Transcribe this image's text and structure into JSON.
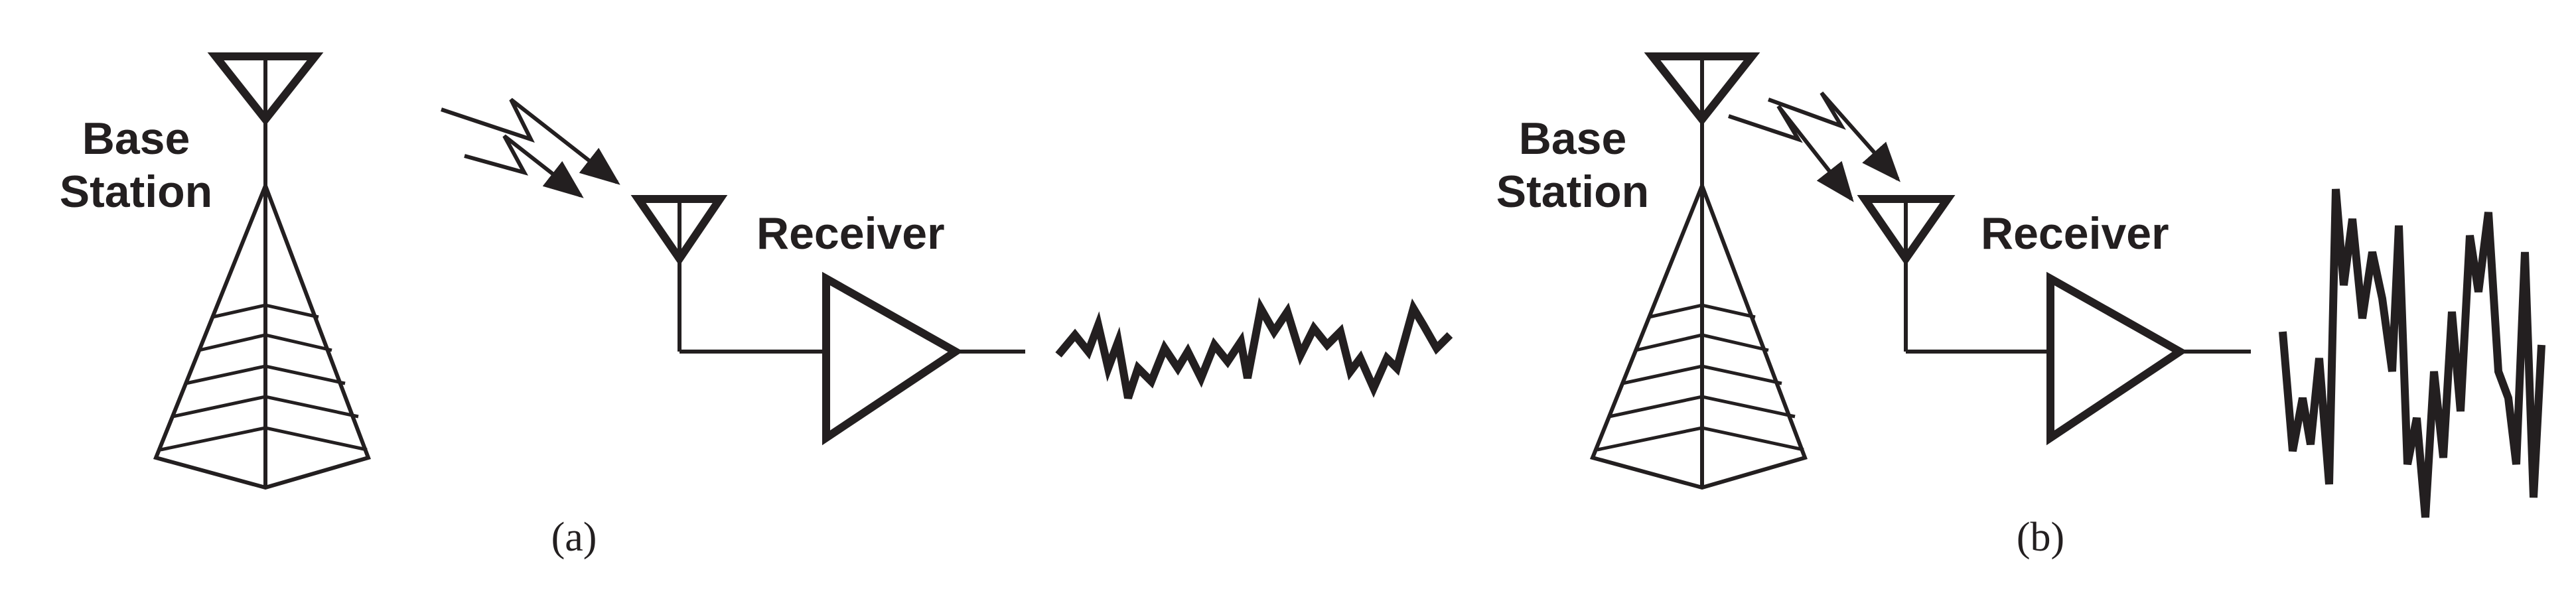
{
  "figure": {
    "panel_a": {
      "station_label_line1": "Base",
      "station_label_line2": "Station",
      "receiver_label": "Receiver",
      "caption": "(a)"
    },
    "panel_b": {
      "station_label_line1": "Base",
      "station_label_line2": "Station",
      "receiver_label": "Receiver",
      "caption": "(b)"
    }
  }
}
